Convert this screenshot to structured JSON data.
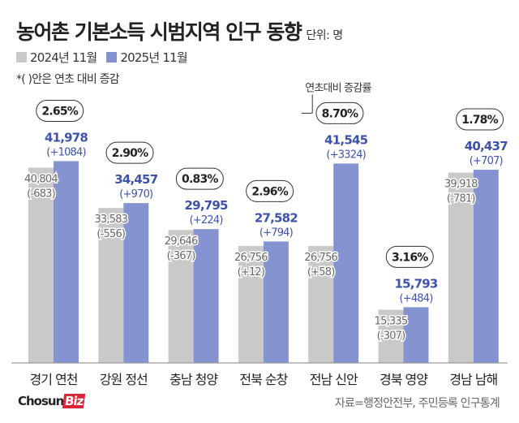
{
  "title": "농어촌 기본소득 시범지역 인구 동향",
  "unit": "단위: 명",
  "note": "*( )안은 연초 대비 증감",
  "annotation": "연초대비 증감률",
  "source": "자료=행정안전부, 주민등록 인구통계",
  "logo": {
    "text": "Chosun",
    "accent": "Biz"
  },
  "chart_data": {
    "type": "bar",
    "categories": [
      "경기 연천",
      "강원 정선",
      "충남 청양",
      "전북 순창",
      "전남 신안",
      "경북 영양",
      "경남 남해"
    ],
    "series": [
      {
        "name": "2024년 11월",
        "color": "#c9c9c9",
        "values": [
          40804,
          33583,
          29646,
          26756,
          26756,
          15335,
          39918
        ],
        "labels": [
          "40,804",
          "33,583",
          "29,646",
          "26,756",
          "26,756",
          "15,335",
          "39,918"
        ],
        "changes": [
          "(-683)",
          "(-556)",
          "(-367)",
          "(+12)",
          "(+58)",
          "(-307)",
          "(-781)"
        ]
      },
      {
        "name": "2025년 11월",
        "color": "#8594d1",
        "values": [
          41978,
          34457,
          29795,
          27582,
          41545,
          15793,
          40437
        ],
        "labels": [
          "41,978",
          "34,457",
          "29,795",
          "27,582",
          "41,545",
          "15,793",
          "40,437"
        ],
        "changes": [
          "(+1084)",
          "(+970)",
          "(+224)",
          "(+794)",
          "(+3324)",
          "(+484)",
          "(+707)"
        ]
      }
    ],
    "growth_rates": [
      "2.65%",
      "2.90%",
      "0.83%",
      "2.96%",
      "8.70%",
      "3.16%",
      "1.78%"
    ],
    "grid": false
  }
}
